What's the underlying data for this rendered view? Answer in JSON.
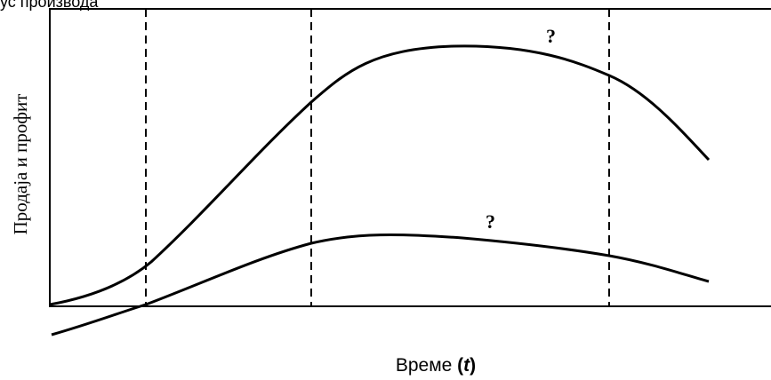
{
  "diagram": {
    "top_label": "ус производа",
    "y_axis_label": "Продаја и профит",
    "x_axis_label": "Време ",
    "x_axis_symbol": "(t)",
    "upper_curve_mark": "?",
    "lower_curve_mark": "?"
  }
}
